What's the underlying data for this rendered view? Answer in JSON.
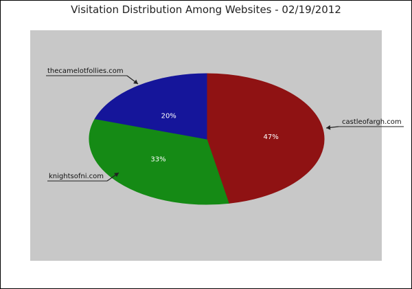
{
  "chart_data": {
    "type": "pie",
    "title": "Visitation Distribution Among Websites - 02/19/2012",
    "slices": [
      {
        "label": "castleofargh.com",
        "value": 47,
        "value_label": "47%",
        "color": "#8f1213"
      },
      {
        "label": "knightsofni.com",
        "value": 33,
        "value_label": "33%",
        "color": "#158a15"
      },
      {
        "label": "thecamelotfollies.com",
        "value": 20,
        "value_label": "20%",
        "color": "#15159a"
      }
    ],
    "plot_background": "#c8c8c8",
    "start": "top",
    "direction": "clockwise",
    "label_style": "percent-inside",
    "legend": "callouts"
  }
}
